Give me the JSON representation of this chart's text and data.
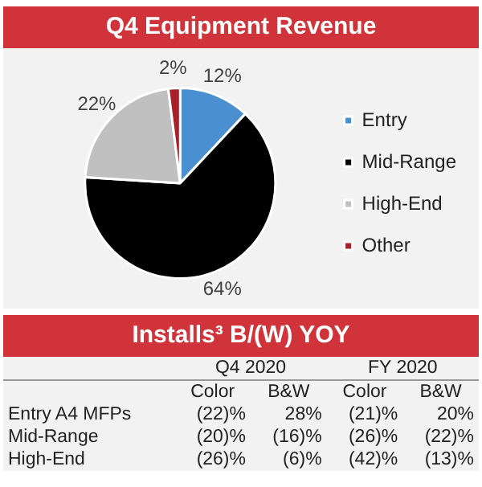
{
  "chart_data": [
    {
      "type": "pie",
      "title": "Q4 Equipment Revenue",
      "categories": [
        "Entry",
        "Mid-Range",
        "High-End",
        "Other"
      ],
      "values": [
        12,
        64,
        22,
        2
      ],
      "colors": [
        "#4a8fd0",
        "#000000",
        "#c0c0c0",
        "#a8212a"
      ],
      "value_labels": [
        "12%",
        "64%",
        "22%",
        "2%"
      ],
      "legend": "right"
    },
    {
      "type": "other",
      "title": "Installs³ B/(W) YOY",
      "annotations": [
        "Q4 2020",
        "FY 2020",
        "Color",
        "B&W",
        "Color",
        "B&W",
        "Entry A4 MFPs",
        "(22)%",
        "28%",
        "(21)%",
        "20%",
        "Mid-Range",
        "(20)%",
        "(16)%",
        "(26)%",
        "(22)%",
        "High-End",
        "(26)%",
        "(6)%",
        "(42)%",
        "(13)%"
      ]
    }
  ]
}
